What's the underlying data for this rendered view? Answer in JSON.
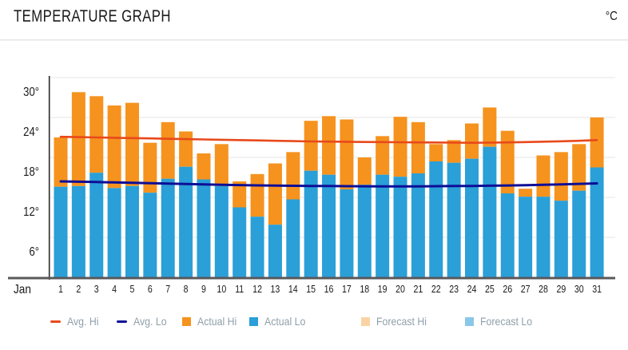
{
  "header": {
    "title": "TEMPERATURE GRAPH",
    "unit": "°C"
  },
  "chart_data": {
    "type": "bar",
    "title": "TEMPERATURE GRAPH",
    "unit": "°C",
    "month_label": "Jan",
    "x": [
      1,
      2,
      3,
      4,
      5,
      6,
      7,
      8,
      9,
      10,
      11,
      12,
      13,
      14,
      15,
      16,
      17,
      18,
      19,
      20,
      21,
      22,
      23,
      24,
      25,
      26,
      27,
      28,
      29,
      30,
      31
    ],
    "yticks": [
      6,
      12,
      18,
      24,
      30
    ],
    "ytick_labels": [
      "6°",
      "12°",
      "18°",
      "24°",
      "30°"
    ],
    "ylim": [
      0,
      30
    ],
    "grid": true,
    "legend_position": "bottom",
    "series": [
      {
        "name": "Avg. Hi",
        "type": "line",
        "color": "#e8491b",
        "values": [
          21.1,
          21.05,
          21.0,
          20.95,
          20.9,
          20.85,
          20.8,
          20.75,
          20.7,
          20.65,
          20.6,
          20.55,
          20.5,
          20.45,
          20.4,
          20.38,
          20.35,
          20.32,
          20.3,
          20.28,
          20.26,
          20.24,
          20.22,
          20.2,
          20.22,
          20.26,
          20.3,
          20.36,
          20.42,
          20.5,
          20.6
        ]
      },
      {
        "name": "Avg. Lo",
        "type": "line",
        "color": "#0d0e96",
        "values": [
          14.4,
          14.35,
          14.3,
          14.25,
          14.2,
          14.13,
          14.06,
          14.0,
          13.95,
          13.9,
          13.85,
          13.8,
          13.77,
          13.74,
          13.72,
          13.7,
          13.68,
          13.67,
          13.66,
          13.65,
          13.66,
          13.68,
          13.7,
          13.72,
          13.75,
          13.79,
          13.84,
          13.9,
          13.96,
          14.03,
          14.1
        ]
      },
      {
        "name": "Actual Hi",
        "type": "bar",
        "color": "#f5931e",
        "values": [
          21.0,
          27.8,
          27.2,
          25.8,
          26.2,
          20.2,
          23.3,
          21.9,
          18.6,
          20.0,
          14.4,
          15.5,
          17.1,
          18.8,
          23.5,
          24.2,
          23.7,
          18.0,
          21.2,
          24.1,
          23.3,
          20.0,
          20.6,
          23.1,
          25.5,
          22.0,
          13.3,
          18.3,
          18.8,
          20.0,
          24.0
        ]
      },
      {
        "name": "Actual Lo",
        "type": "bar",
        "color": "#2b9fd7",
        "values": [
          13.6,
          13.7,
          15.7,
          13.4,
          13.7,
          12.7,
          14.8,
          16.6,
          14.7,
          13.7,
          10.5,
          9.1,
          7.9,
          11.7,
          16.0,
          15.4,
          13.2,
          13.9,
          15.4,
          15.1,
          15.6,
          17.4,
          17.2,
          17.8,
          19.6,
          12.6,
          12.1,
          12.1,
          11.5,
          13.0,
          16.5
        ]
      },
      {
        "name": "Forecast Hi",
        "type": "bar",
        "color": "#f9d3a4",
        "values": []
      },
      {
        "name": "Forecast Lo",
        "type": "bar",
        "color": "#8bc7e8",
        "values": []
      }
    ],
    "colors": {
      "grid": "#ededed",
      "axis_bottom": "#58595b",
      "axis_left": "#2b2b2b",
      "text": "#1a1a1a",
      "legend_text": "#8f9fa9"
    }
  }
}
